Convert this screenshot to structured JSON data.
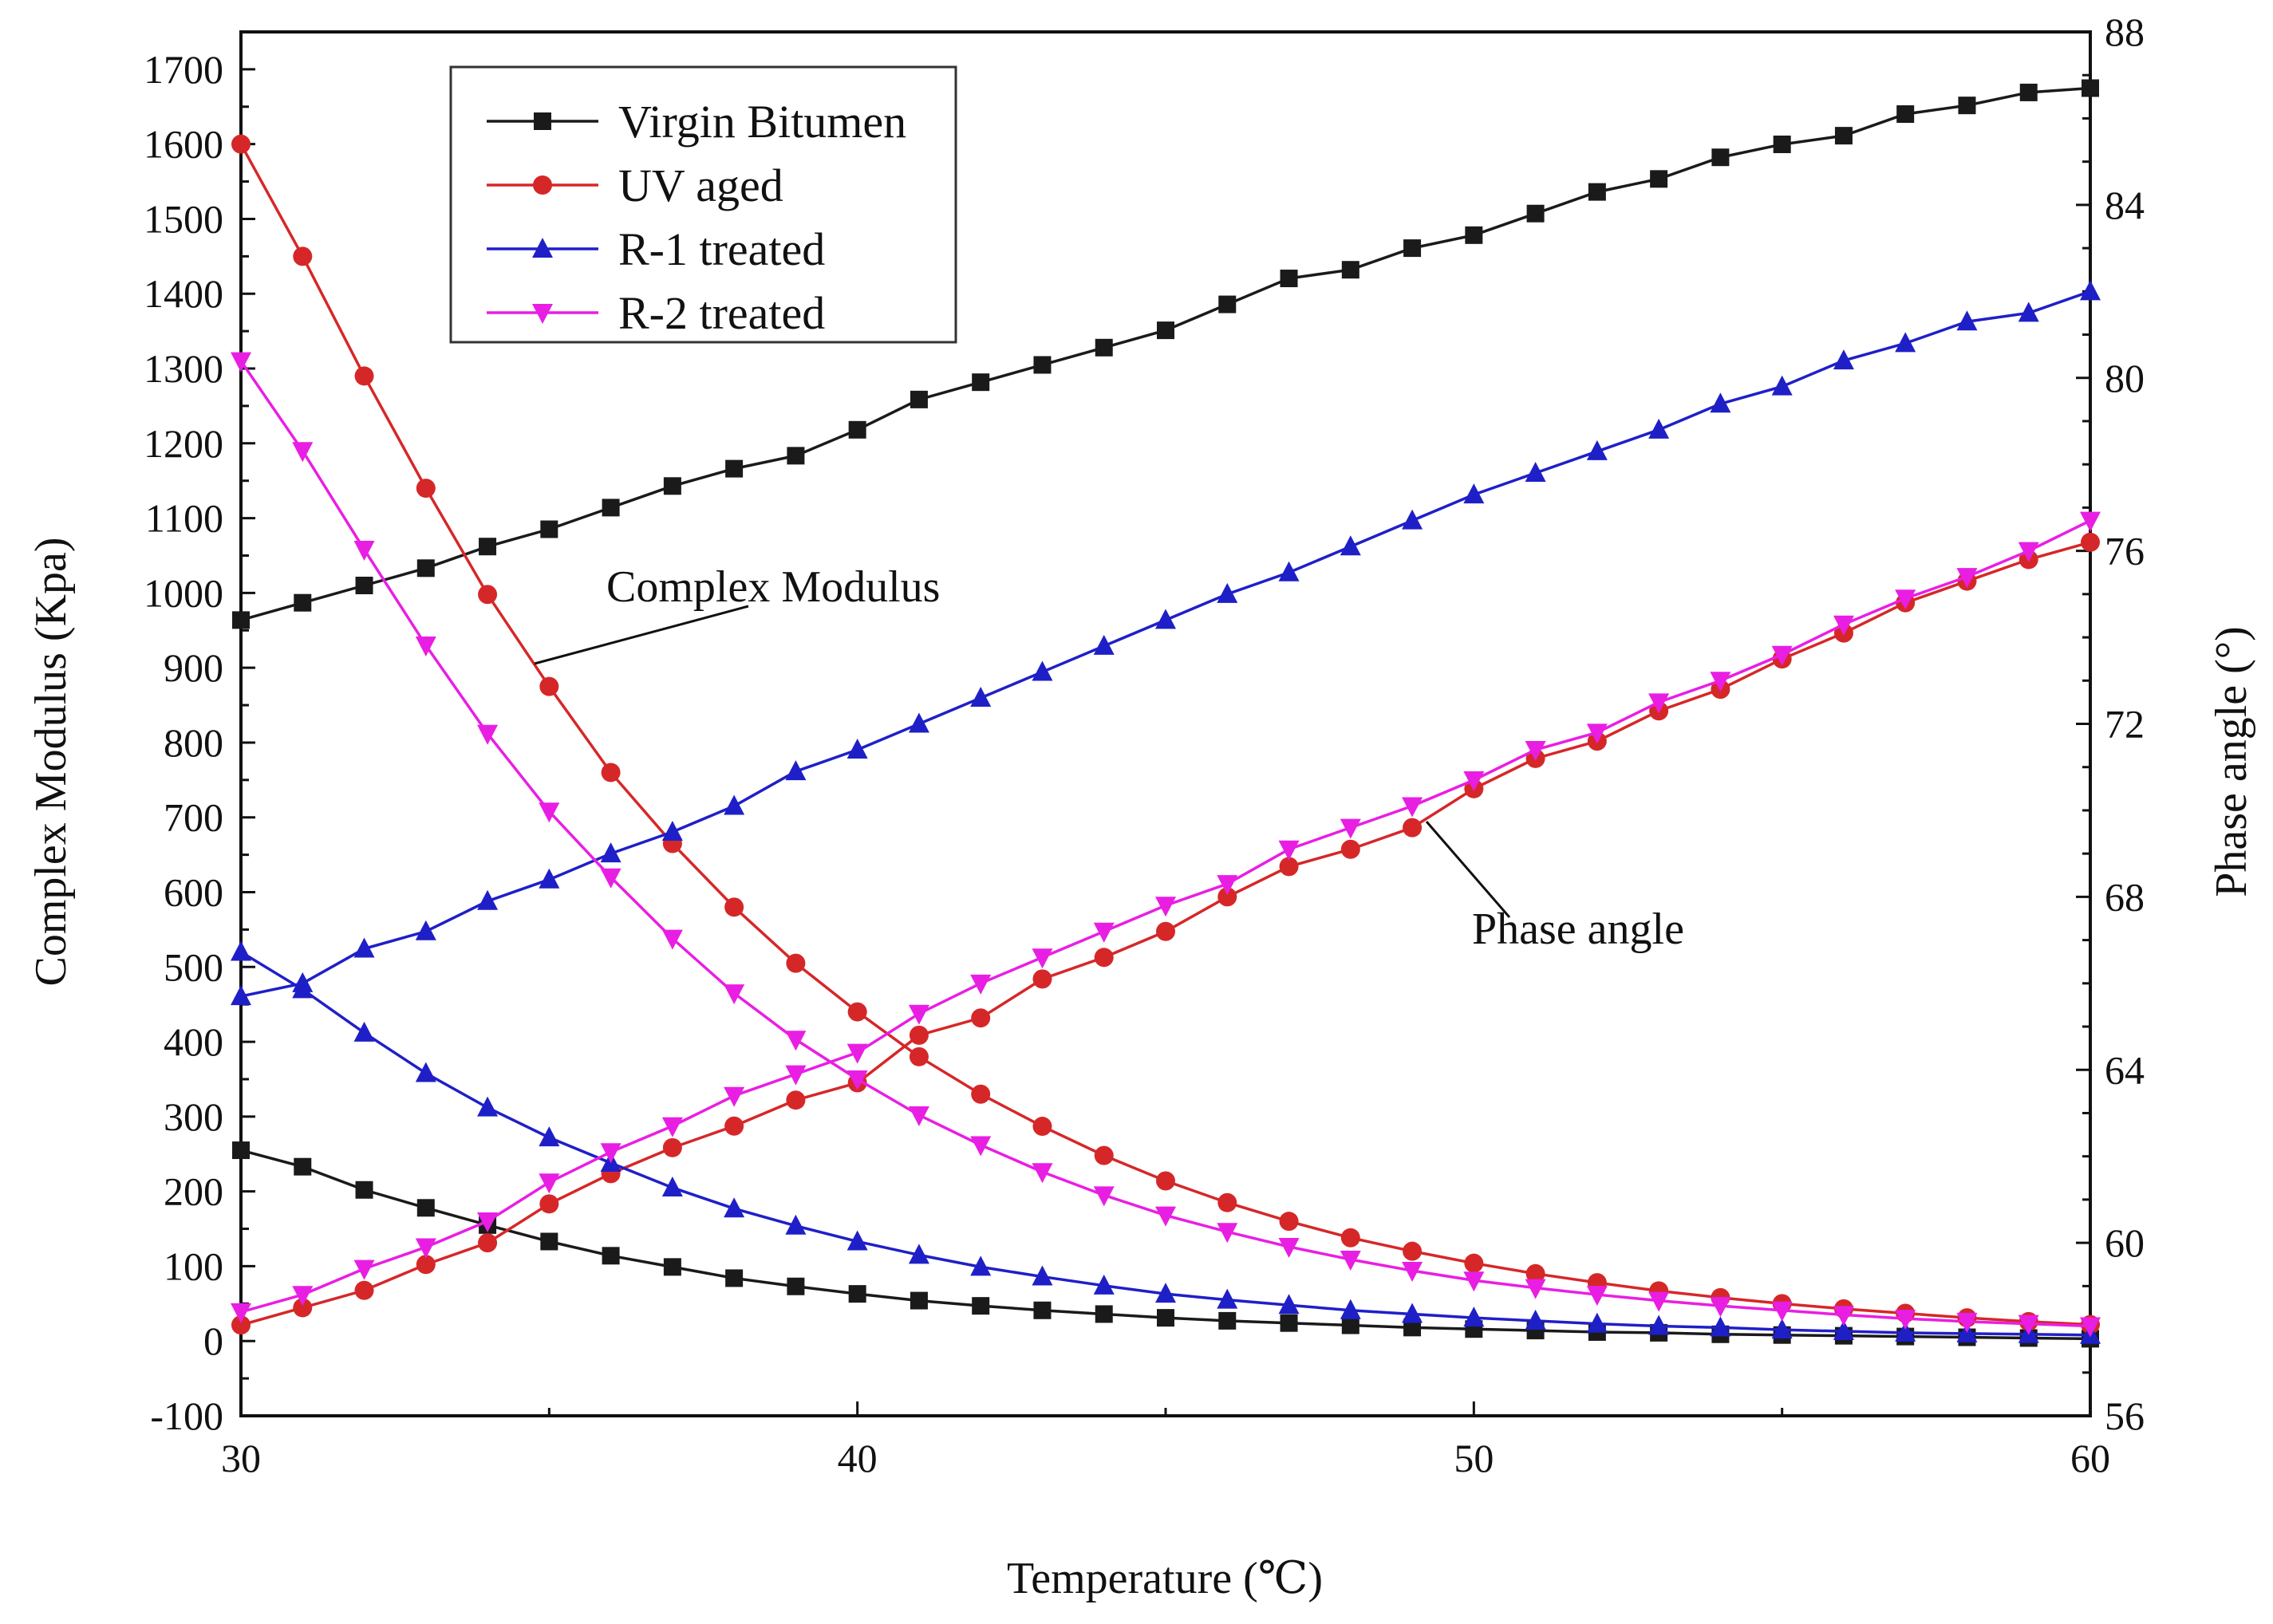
{
  "chart_data": {
    "type": "line",
    "title": "",
    "xlabel": "Temperature (℃)",
    "ylabel_left": "Complex Modulus (Kpa)",
    "ylabel_right": "Phase angle (°)",
    "xlim": [
      30,
      60
    ],
    "ylim_left": [
      -100,
      1750
    ],
    "ylim_right": [
      56,
      88
    ],
    "x_ticks": [
      30,
      40,
      50,
      60
    ],
    "y_left_ticks": [
      -100,
      0,
      100,
      200,
      300,
      400,
      500,
      600,
      700,
      800,
      900,
      1000,
      1100,
      1200,
      1300,
      1400,
      1500,
      1600,
      1700
    ],
    "y_right_ticks": [
      56,
      60,
      64,
      68,
      72,
      76,
      80,
      84,
      88
    ],
    "grid": false,
    "legend_position": "top-left",
    "annotations": [
      "Complex Modulus",
      "Phase angle"
    ],
    "x": [
      30,
      31,
      32,
      33,
      34,
      35,
      36,
      37,
      38,
      39,
      40,
      41,
      42,
      43,
      44,
      45,
      46,
      47,
      48,
      49,
      50,
      51,
      52,
      53,
      54,
      55,
      56,
      57,
      58,
      59,
      60
    ],
    "series": [
      {
        "name": "Virgin Bitumen",
        "color": "#1a1a1a",
        "marker": "square",
        "complex_modulus": [
          255,
          233,
          202,
          178,
          155,
          133,
          114,
          99,
          84,
          73,
          63,
          54,
          47,
          41,
          36,
          31,
          27,
          24,
          21,
          18,
          16,
          14,
          12,
          11,
          9,
          8,
          7,
          6,
          5,
          4,
          3
        ],
        "phase_angle": [
          74.4,
          74.8,
          75.2,
          75.6,
          76.1,
          76.5,
          77.0,
          77.5,
          77.9,
          78.2,
          78.8,
          79.5,
          79.9,
          80.3,
          80.7,
          81.1,
          81.7,
          82.3,
          82.5,
          83.0,
          83.3,
          83.8,
          84.3,
          84.6,
          85.1,
          85.4,
          85.6,
          86.1,
          86.3,
          86.6,
          86.7
        ]
      },
      {
        "name": "UV aged",
        "color": "#d62728",
        "marker": "circle",
        "complex_modulus": [
          1600,
          1450,
          1290,
          1140,
          998,
          875,
          760,
          665,
          580,
          505,
          440,
          380,
          330,
          287,
          248,
          214,
          185,
          160,
          138,
          120,
          104,
          90,
          78,
          67,
          58,
          50,
          43,
          37,
          31,
          26,
          22
        ],
        "phase_angle": [
          58.1,
          58.5,
          58.9,
          59.5,
          60.0,
          60.9,
          61.6,
          62.2,
          62.7,
          63.3,
          63.7,
          64.8,
          65.2,
          66.1,
          66.6,
          67.2,
          68.0,
          68.7,
          69.1,
          69.6,
          70.5,
          71.2,
          71.6,
          72.3,
          72.8,
          73.5,
          74.1,
          74.8,
          75.3,
          75.8,
          76.2
        ]
      },
      {
        "name": "R-1 treated",
        "color": "#1f1fc8",
        "marker": "triangle-up",
        "complex_modulus": [
          520,
          470,
          412,
          358,
          312,
          272,
          238,
          205,
          177,
          154,
          133,
          115,
          99,
          86,
          74,
          63,
          55,
          48,
          41,
          36,
          31,
          27,
          23,
          20,
          18,
          15,
          13,
          11,
          10,
          9,
          8
        ],
        "phase_angle": [
          65.7,
          66.0,
          66.8,
          67.2,
          67.9,
          68.4,
          69.0,
          69.5,
          70.1,
          70.9,
          71.4,
          72.0,
          72.6,
          73.2,
          73.8,
          74.4,
          75.0,
          75.5,
          76.1,
          76.7,
          77.3,
          77.8,
          78.3,
          78.8,
          79.4,
          79.8,
          80.4,
          80.8,
          81.3,
          81.5,
          82.0
        ]
      },
      {
        "name": "R-2 treated",
        "color": "#e91ee3",
        "marker": "triangle-down",
        "complex_modulus": [
          1310,
          1190,
          1058,
          930,
          812,
          708,
          620,
          538,
          465,
          403,
          350,
          302,
          262,
          226,
          195,
          168,
          146,
          126,
          109,
          94,
          81,
          71,
          62,
          54,
          47,
          41,
          35,
          30,
          26,
          23,
          20
        ],
        "phase_angle": [
          58.4,
          58.8,
          59.4,
          59.9,
          60.5,
          61.4,
          62.1,
          62.7,
          63.4,
          63.9,
          64.4,
          65.3,
          66.0,
          66.6,
          67.2,
          67.8,
          68.3,
          69.1,
          69.6,
          70.1,
          70.7,
          71.4,
          71.8,
          72.5,
          73.0,
          73.6,
          74.3,
          74.9,
          75.4,
          76.0,
          76.7
        ]
      }
    ]
  }
}
